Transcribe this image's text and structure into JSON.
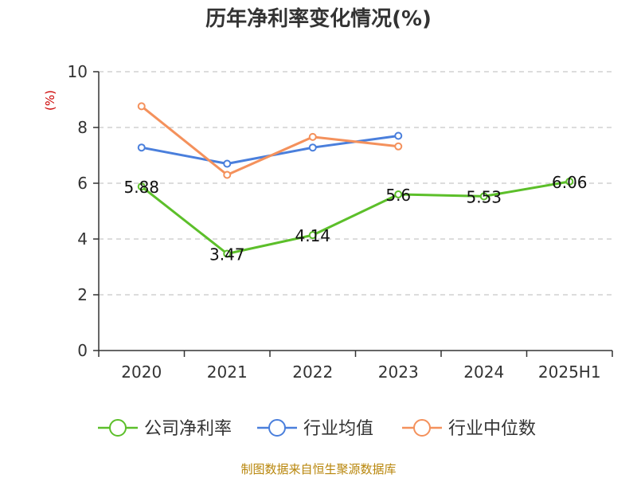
{
  "chart_data": {
    "type": "line",
    "title": "历年净利率变化情况(%)",
    "ylabel": "(%)",
    "categories": [
      "2020",
      "2021",
      "2022",
      "2023",
      "2024",
      "2025H1"
    ],
    "ylim": [
      0,
      10
    ],
    "yticks": [
      0,
      2,
      4,
      6,
      8,
      10
    ],
    "grid": true,
    "legend_position": "bottom",
    "series": [
      {
        "name": "公司净利率",
        "color": "#5cbf2a",
        "values": [
          5.88,
          3.47,
          4.14,
          5.6,
          5.53,
          6.06
        ],
        "labels": [
          "5.88",
          "3.47",
          "4.14",
          "5.6",
          "5.53",
          "6.06"
        ]
      },
      {
        "name": "行业均值",
        "color": "#4a7fdc",
        "values": [
          7.28,
          6.7,
          7.28,
          7.7,
          null,
          null
        ]
      },
      {
        "name": "行业中位数",
        "color": "#f4915c",
        "values": [
          8.76,
          6.3,
          7.66,
          7.32,
          null,
          null
        ]
      }
    ]
  },
  "source": "制图数据来自恒生聚源数据库"
}
